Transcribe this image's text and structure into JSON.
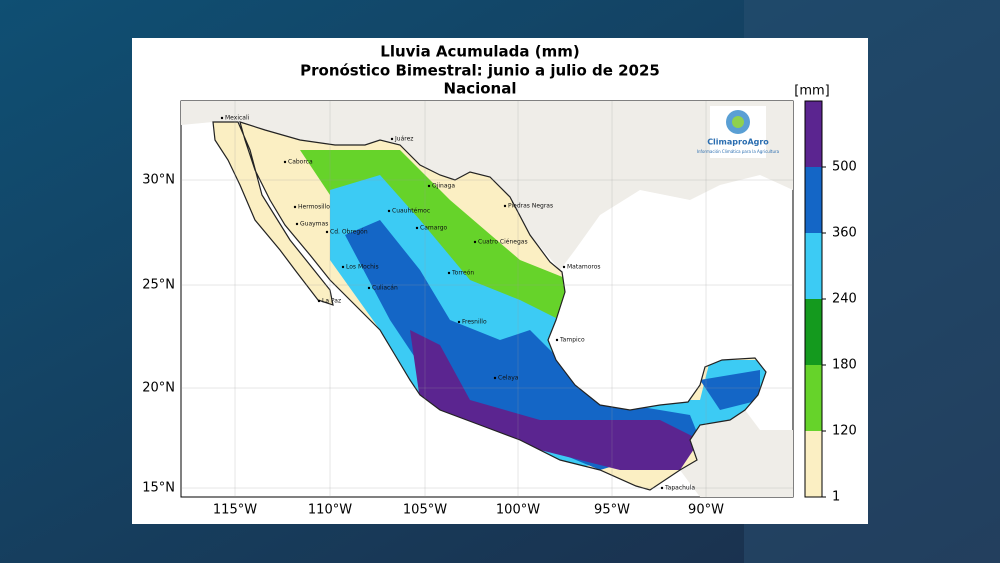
{
  "header": {
    "title": "Lluvia Acumulada (mm)",
    "subtitle": "Pronóstico Bimestral: junio a julio de 2025",
    "region": "Nacional"
  },
  "map": {
    "lat_labels": [
      "30°N",
      "25°N",
      "20°N",
      "15°N"
    ],
    "lon_labels": [
      "115°W",
      "110°W",
      "105°W",
      "100°W",
      "95°W",
      "90°W"
    ],
    "cities": [
      "Mexicali",
      "Juárez",
      "Caborca",
      "Ojinaga",
      "Hermosillo",
      "Piedras Negras",
      "Guaymas",
      "Cd. Obregón",
      "Cuauhtémoc",
      "Camargo",
      "Cuatro Ciénegas",
      "Torreón",
      "Los Mochis",
      "Culiacán",
      "La Paz",
      "Fresnillo",
      "Tampico",
      "Celaya",
      "Tapachula",
      "Matamoros"
    ]
  },
  "legend": {
    "unit": "[mm]",
    "ticks": [
      1,
      120,
      180,
      240,
      360,
      500
    ],
    "colors": [
      "#fbefc3",
      "#66d32a",
      "#149a1e",
      "#3ccbf4",
      "#1466c6",
      "#5b2590"
    ]
  },
  "logo": {
    "name": "ClimaproAgro",
    "tagline": "Información Climática para la Agricultura"
  }
}
